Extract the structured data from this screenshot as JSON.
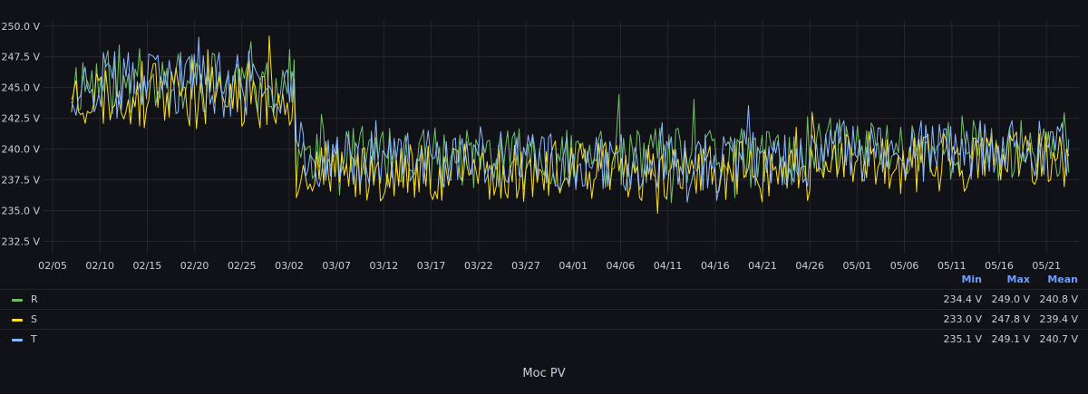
{
  "panel_title": "",
  "next_panel_title": "Moc PV",
  "chart_data": {
    "type": "line",
    "x_ticks": [
      "02/05",
      "02/10",
      "02/15",
      "02/20",
      "02/25",
      "03/02",
      "03/07",
      "03/12",
      "03/17",
      "03/22",
      "03/27",
      "04/01",
      "04/06",
      "04/11",
      "04/16",
      "04/21",
      "04/26",
      "05/01",
      "05/06",
      "05/11",
      "05/16",
      "05/21"
    ],
    "x_range": [
      "02/05",
      "05/24"
    ],
    "y_ticks": [
      "232.5 V",
      "235.0 V",
      "237.5 V",
      "240.0 V",
      "242.5 V",
      "245.0 V",
      "247.5 V",
      "250.0 V"
    ],
    "ylim": [
      231.5,
      250.5
    ],
    "unit": "V",
    "grid": true,
    "legend": "bottom",
    "series": [
      {
        "name": "R",
        "color": "#73bf69",
        "min": "234.4 V",
        "max": "249.0 V",
        "mean": "240.8 V",
        "seed": 11,
        "offset": 0.9
      },
      {
        "name": "S",
        "color": "#fade2a",
        "min": "233.0 V",
        "max": "247.8 V",
        "mean": "239.4 V",
        "seed": 23,
        "offset": -1.2
      },
      {
        "name": "T",
        "color": "#8ab8ff",
        "min": "235.1 V",
        "max": "249.1 V",
        "mean": "240.7 V",
        "seed": 37,
        "offset": 0.5
      }
    ],
    "legend_headers": {
      "min": "Min",
      "max": "Max",
      "mean": "Mean"
    }
  }
}
